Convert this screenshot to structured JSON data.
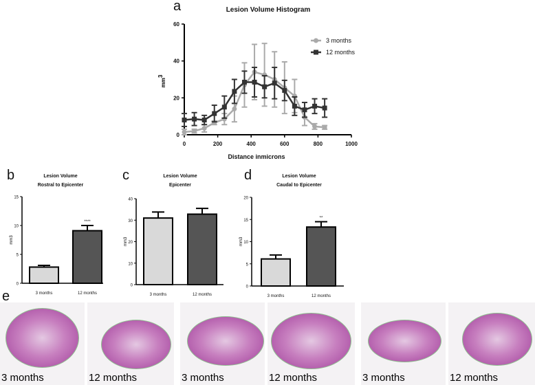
{
  "panel_labels": [
    "a",
    "b",
    "c",
    "d",
    "e"
  ],
  "chart_data": [
    {
      "type": "line",
      "title": "Lesion Volume Histogram",
      "xlabel": "Distance inmicrons",
      "ylabel": "mm3",
      "xlim": [
        0,
        1000
      ],
      "ylim": [
        0,
        60
      ],
      "xticks": [
        0,
        200,
        400,
        600,
        800,
        1000
      ],
      "yticks": [
        0,
        20,
        40,
        60
      ],
      "legend": "top-right",
      "x": [
        0,
        60,
        120,
        180,
        240,
        300,
        360,
        420,
        480,
        540,
        600,
        660,
        720,
        780,
        840
      ],
      "series": [
        {
          "name": "3 months",
          "color": "#aaaaaa",
          "marker": "circle",
          "values": [
            1.5,
            2,
            3.5,
            6.5,
            8.5,
            14,
            27,
            34,
            32.5,
            30,
            25.5,
            21,
            9.5,
            4.5,
            4
          ],
          "errors": [
            1.5,
            1,
            2,
            1,
            3,
            7,
            12,
            15,
            17,
            15,
            14,
            9,
            4.5,
            1.5,
            1
          ]
        },
        {
          "name": "12 months",
          "color": "#333333",
          "marker": "square",
          "values": [
            8,
            8.5,
            8,
            11.5,
            15,
            23.5,
            28.5,
            28.5,
            26,
            28,
            24,
            15.5,
            13.5,
            15.5,
            14.5
          ],
          "errors": [
            3.5,
            3.5,
            2.5,
            4.5,
            6,
            6.5,
            6,
            8,
            6,
            8.5,
            5.5,
            5,
            4,
            4,
            5
          ]
        }
      ]
    },
    {
      "type": "bar",
      "title": "Lesion Volume",
      "subtitle": "Rostral to Epicenter",
      "ylabel": "mm3",
      "ylim": [
        0,
        15
      ],
      "yticks": [
        0,
        5,
        10,
        15
      ],
      "categories": [
        "3 months",
        "12 months"
      ],
      "values": [
        2.8,
        9.1
      ],
      "errors": [
        0.3,
        0.9
      ],
      "annotations": [
        "",
        "****"
      ],
      "colors": [
        "#d9d9d9",
        "#555555"
      ]
    },
    {
      "type": "bar",
      "title": "Lesion Volume",
      "subtitle": "Epicenter",
      "ylabel": "mm3",
      "ylim": [
        0,
        40
      ],
      "yticks": [
        0,
        10,
        20,
        30,
        40
      ],
      "categories": [
        "3 months",
        "12 months"
      ],
      "values": [
        31,
        32.8
      ],
      "errors": [
        2.8,
        2.7
      ],
      "annotations": [
        "",
        ""
      ],
      "colors": [
        "#d9d9d9",
        "#555555"
      ]
    },
    {
      "type": "bar",
      "title": "Lesion Volume",
      "subtitle": "Caudal to Epicenter",
      "ylabel": "mm3",
      "ylim": [
        0,
        20
      ],
      "yticks": [
        0,
        5,
        10,
        15,
        20
      ],
      "categories": [
        "3 months",
        "12 months"
      ],
      "values": [
        6.1,
        13.3
      ],
      "errors": [
        0.9,
        1.2
      ],
      "annotations": [
        "",
        "**"
      ],
      "colors": [
        "#d9d9d9",
        "#555555"
      ]
    }
  ],
  "histology": [
    {
      "caption": "3 months"
    },
    {
      "caption": "12 months"
    },
    {
      "caption": "3 months"
    },
    {
      "caption": "12 months"
    },
    {
      "caption": "3 months"
    },
    {
      "caption": "12 months"
    }
  ]
}
